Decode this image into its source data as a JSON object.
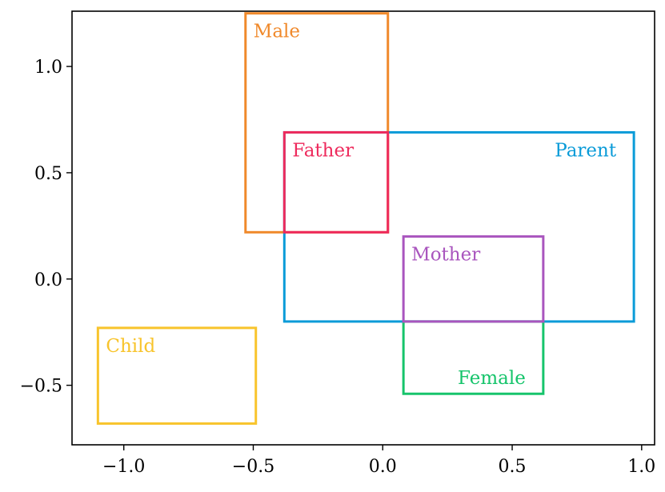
{
  "chart_data": {
    "type": "box-embedding",
    "title": "",
    "xlabel": "",
    "ylabel": "",
    "xlim": [
      -1.2,
      1.05
    ],
    "ylim": [
      -0.78,
      1.26
    ],
    "xticks": [
      -1.0,
      -0.5,
      0.0,
      0.5,
      1.0
    ],
    "xtick_labels": [
      "−1.0",
      "−0.5",
      "0.0",
      "0.5",
      "1.0"
    ],
    "yticks": [
      -0.5,
      0.0,
      0.5,
      1.0
    ],
    "ytick_labels": [
      "−0.5",
      "0.0",
      "0.5",
      "1.0"
    ],
    "grid": false,
    "boxes": [
      {
        "name": "Male",
        "x0": -0.53,
        "y0": 0.22,
        "x1": 0.02,
        "y1": 1.25,
        "color": "#F0892B",
        "label_anchor": "top-left"
      },
      {
        "name": "Parent",
        "x0": -0.38,
        "y0": -0.2,
        "x1": 0.97,
        "y1": 0.69,
        "color": "#0A9BD8",
        "label_anchor": "top-right"
      },
      {
        "name": "Father",
        "x0": -0.38,
        "y0": 0.22,
        "x1": 0.02,
        "y1": 0.69,
        "color": "#EE2A5C",
        "label_anchor": "top-left"
      },
      {
        "name": "Female",
        "x0": 0.08,
        "y0": -0.54,
        "x1": 0.62,
        "y1": -0.2,
        "color": "#16C46B",
        "label_anchor": "bottom-right"
      },
      {
        "name": "Mother",
        "x0": 0.08,
        "y0": -0.2,
        "x1": 0.62,
        "y1": 0.2,
        "color": "#A955BE",
        "label_anchor": "top-left"
      },
      {
        "name": "Child",
        "x0": -1.1,
        "y0": -0.68,
        "x1": -0.49,
        "y1": -0.23,
        "color": "#F8C42C",
        "label_anchor": "top-left"
      }
    ]
  }
}
